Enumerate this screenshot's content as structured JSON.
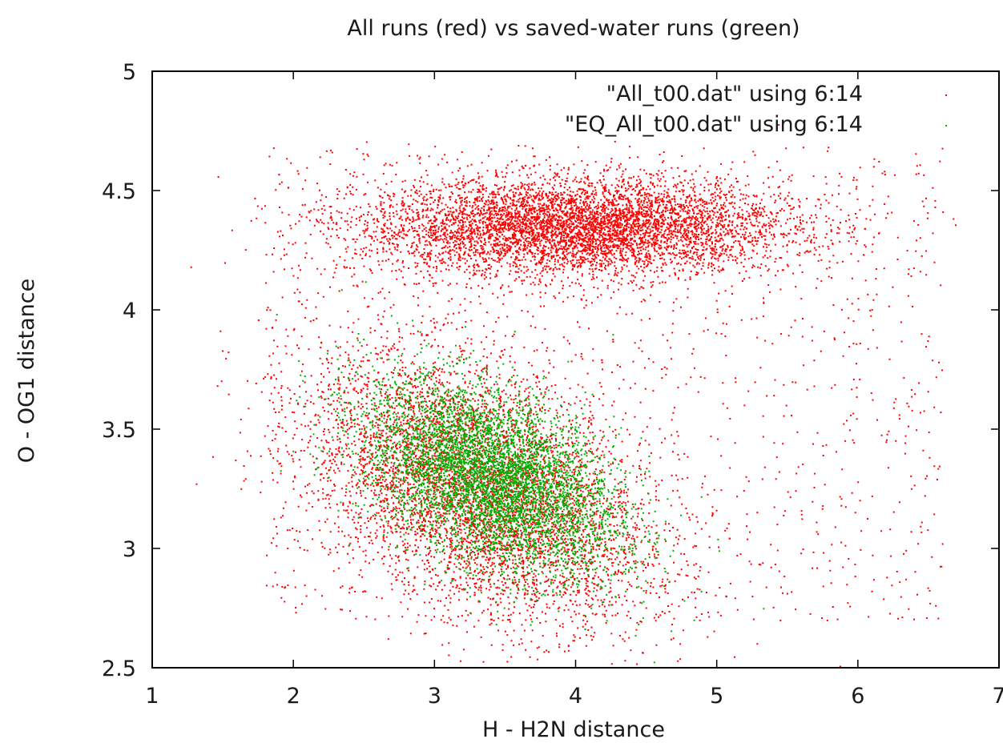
{
  "chart_data": {
    "type": "scatter",
    "title": "All runs (red) vs saved-water runs (green)",
    "xlabel": "H - H2N distance",
    "ylabel": "O - OG1 distance",
    "xlim": [
      1,
      7
    ],
    "ylim": [
      2.5,
      5
    ],
    "x_ticks": [
      1,
      2,
      3,
      4,
      5,
      6,
      7
    ],
    "y_ticks": [
      2.5,
      3,
      3.5,
      4,
      4.5,
      5
    ],
    "x_tick_labels": [
      "1",
      "2",
      "3",
      "4",
      "5",
      "6",
      "7"
    ],
    "y_tick_labels": [
      "2.5",
      "3",
      "3.5",
      "4",
      "4.5",
      "5"
    ],
    "grid": false,
    "legend_position": "top-right",
    "series": [
      {
        "name": "\"All_t00.dat\" using 6:14",
        "color": "#ff0000",
        "clusters": [
          {
            "center": [
              4.0,
              4.35
            ],
            "spread": [
              0.75,
              0.1
            ],
            "points": 9000
          },
          {
            "center": [
              3.3,
              3.25
            ],
            "spread": [
              0.6,
              0.25
            ],
            "points": 16000
          }
        ],
        "outlier_points": 1500
      },
      {
        "name": "\"EQ_All_t00.dat\" using 6:14",
        "color": "#00b000",
        "clusters": [
          {
            "center": [
              3.4,
              3.3
            ],
            "spread": [
              0.45,
              0.18
            ],
            "points": 7000
          }
        ],
        "outlier_points": 0
      }
    ]
  }
}
